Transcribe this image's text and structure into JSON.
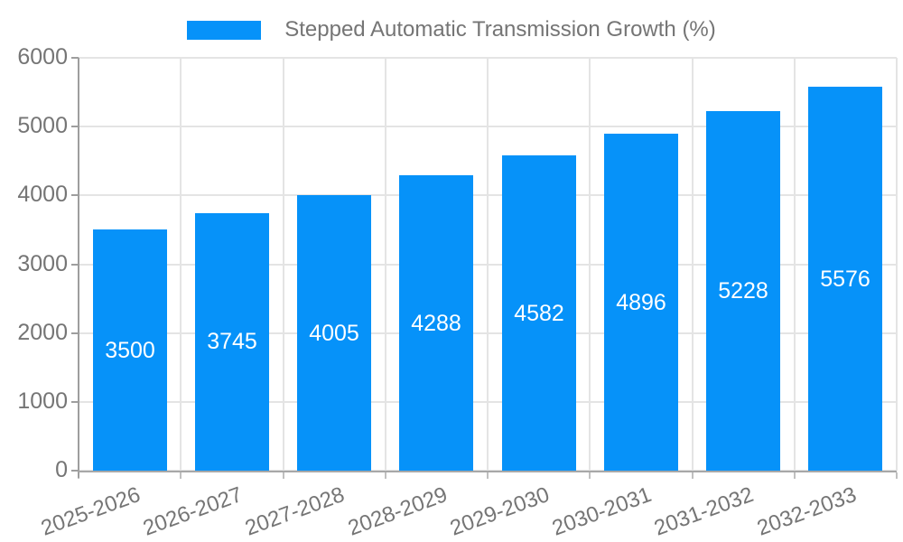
{
  "legend": {
    "label": "Stepped Automatic Transmission Growth (%)",
    "position": "top"
  },
  "colors": {
    "bar": "#0692f9",
    "axis_text": "#757575",
    "bar_label_text": "#ffffff",
    "grid_line": "#e4e4e4",
    "axis_line": "#9e9e9e",
    "background": "#ffffff"
  },
  "chart_data": {
    "type": "bar",
    "title": "",
    "categories": [
      "2025-2026",
      "2026-2027",
      "2027-2028",
      "2028-2029",
      "2029-2030",
      "2030-2031",
      "2031-2032",
      "2032-2033"
    ],
    "series": [
      {
        "name": "Stepped Automatic Transmission Growth (%)",
        "values": [
          3500,
          3745,
          4005,
          4288,
          4582,
          4896,
          5228,
          5576
        ]
      }
    ],
    "xlabel": "",
    "ylabel": "",
    "ylim": [
      0,
      6000
    ],
    "y_ticks": [
      0,
      1000,
      2000,
      3000,
      4000,
      5000,
      6000
    ],
    "grid": "horizontal-and-vertical",
    "legend_position": "top-center",
    "value_labels": "centered-inside-bars-white",
    "x_label_rotation_deg": -20
  }
}
